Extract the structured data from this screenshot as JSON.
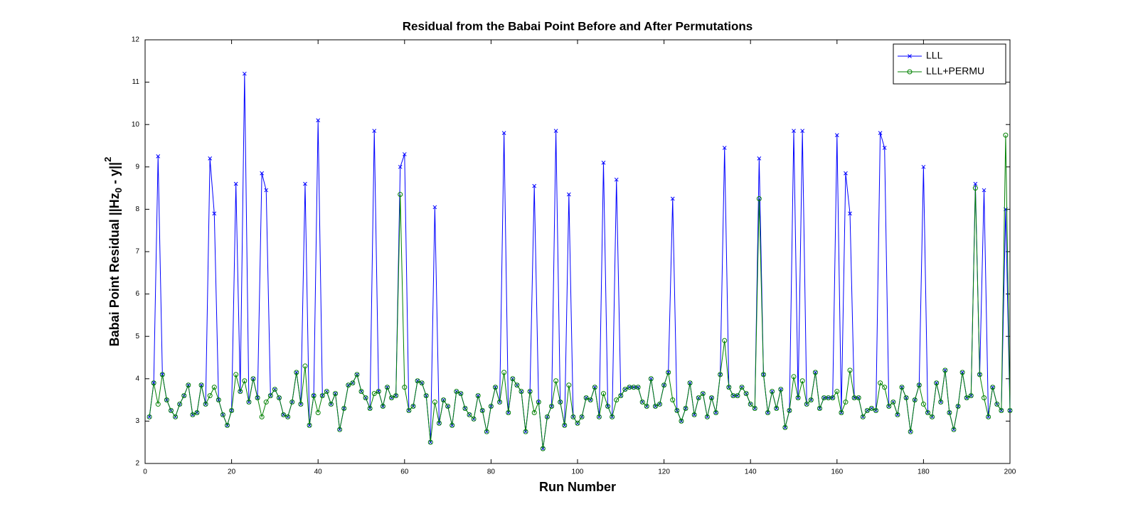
{
  "chart_data": {
    "type": "line",
    "title": "Residual from the Babai Point Before and After Permutations",
    "xlabel": "Run Number",
    "ylabel": [
      "Babai Point Residual ||Hz",
      "0",
      " - y||",
      "2"
    ],
    "xlim": [
      0,
      200
    ],
    "xticks": [
      0,
      20,
      40,
      60,
      80,
      100,
      120,
      140,
      160,
      180,
      200
    ],
    "ylim": [
      2,
      12
    ],
    "yticks": [
      2,
      3,
      4,
      5,
      6,
      7,
      8,
      9,
      10,
      11,
      12
    ],
    "legend": "northeast",
    "x": [
      1,
      2,
      3,
      4,
      5,
      6,
      7,
      8,
      9,
      10,
      11,
      12,
      13,
      14,
      15,
      16,
      17,
      18,
      19,
      20,
      21,
      22,
      23,
      24,
      25,
      26,
      27,
      28,
      29,
      30,
      31,
      32,
      33,
      34,
      35,
      36,
      37,
      38,
      39,
      40,
      41,
      42,
      43,
      44,
      45,
      46,
      47,
      48,
      49,
      50,
      51,
      52,
      53,
      54,
      55,
      56,
      57,
      58,
      59,
      60,
      61,
      62,
      63,
      64,
      65,
      66,
      67,
      68,
      69,
      70,
      71,
      72,
      73,
      74,
      75,
      76,
      77,
      78,
      79,
      80,
      81,
      82,
      83,
      84,
      85,
      86,
      87,
      88,
      89,
      90,
      91,
      92,
      93,
      94,
      95,
      96,
      97,
      98,
      99,
      100,
      101,
      102,
      103,
      104,
      105,
      106,
      107,
      108,
      109,
      110,
      111,
      112,
      113,
      114,
      115,
      116,
      117,
      118,
      119,
      120,
      121,
      122,
      123,
      124,
      125,
      126,
      127,
      128,
      129,
      130,
      131,
      132,
      133,
      134,
      135,
      136,
      137,
      138,
      139,
      140,
      141,
      142,
      143,
      144,
      145,
      146,
      147,
      148,
      149,
      150,
      151,
      152,
      153,
      154,
      155,
      156,
      157,
      158,
      159,
      160,
      161,
      162,
      163,
      164,
      165,
      166,
      167,
      168,
      169,
      170,
      171,
      172,
      173,
      174,
      175,
      176,
      177,
      178,
      179,
      180,
      181,
      182,
      183,
      184,
      185,
      186,
      187,
      188,
      189,
      190,
      191,
      192,
      193,
      194,
      195,
      196,
      197,
      198,
      199,
      200
    ],
    "series": [
      {
        "name": "LLL",
        "color": "#0000ff",
        "marker": "x",
        "values": [
          3.1,
          3.9,
          9.25,
          4.1,
          3.5,
          3.25,
          3.1,
          3.4,
          3.6,
          3.85,
          3.15,
          3.2,
          3.85,
          3.4,
          9.2,
          7.9,
          3.5,
          3.15,
          2.9,
          3.25,
          8.6,
          3.7,
          11.2,
          3.45,
          4.0,
          3.55,
          8.85,
          8.45,
          3.6,
          3.75,
          3.55,
          3.15,
          3.1,
          3.45,
          4.15,
          3.4,
          8.6,
          2.9,
          3.6,
          10.1,
          3.6,
          3.7,
          3.4,
          3.65,
          2.8,
          3.3,
          3.85,
          3.9,
          4.1,
          3.7,
          3.55,
          3.3,
          9.85,
          3.7,
          3.35,
          3.8,
          3.55,
          3.6,
          9.0,
          9.3,
          3.25,
          3.35,
          3.95,
          3.9,
          3.6,
          2.5,
          8.05,
          2.95,
          3.5,
          3.35,
          2.9,
          3.7,
          3.65,
          3.3,
          3.15,
          3.05,
          3.6,
          3.25,
          2.75,
          3.35,
          3.8,
          3.45,
          9.8,
          3.2,
          4.0,
          3.85,
          3.7,
          2.75,
          3.7,
          8.55,
          3.45,
          2.35,
          3.1,
          3.35,
          9.85,
          3.45,
          2.9,
          8.35,
          3.1,
          2.95,
          3.1,
          3.55,
          3.5,
          3.8,
          3.1,
          9.1,
          3.35,
          3.1,
          8.7,
          3.6,
          3.75,
          3.8,
          3.8,
          3.8,
          3.45,
          3.35,
          4.0,
          3.35,
          3.4,
          3.85,
          4.15,
          8.25,
          3.25,
          3.0,
          3.3,
          3.9,
          3.15,
          3.55,
          3.65,
          3.1,
          3.55,
          3.2,
          4.1,
          9.45,
          3.8,
          3.6,
          3.6,
          3.8,
          3.65,
          3.4,
          3.3,
          9.2,
          4.1,
          3.2,
          3.7,
          3.3,
          3.75,
          2.85,
          3.25,
          9.85,
          3.55,
          9.85,
          3.4,
          3.5,
          4.15,
          3.3,
          3.55,
          3.55,
          3.55,
          9.75,
          3.2,
          8.85,
          7.9,
          3.55,
          3.55,
          3.1,
          3.25,
          3.3,
          3.25,
          9.8,
          9.45,
          3.35,
          3.45,
          3.15,
          3.8,
          3.55,
          2.75,
          3.5,
          3.85,
          9.0,
          3.2,
          3.1,
          3.9,
          3.45,
          4.2,
          3.2,
          2.8,
          3.35,
          4.15,
          3.55,
          3.6,
          8.6,
          4.1,
          8.45,
          3.1,
          3.8,
          3.4,
          3.25,
          8.0,
          3.25
        ]
      },
      {
        "name": "LLL+PERMU",
        "color": "#008000",
        "marker": "o",
        "values": [
          3.1,
          3.9,
          3.4,
          4.1,
          3.5,
          3.25,
          3.1,
          3.4,
          3.6,
          3.85,
          3.15,
          3.2,
          3.85,
          3.4,
          3.6,
          3.8,
          3.5,
          3.15,
          2.9,
          3.25,
          4.1,
          3.7,
          3.95,
          3.45,
          4.0,
          3.55,
          3.1,
          3.45,
          3.6,
          3.75,
          3.55,
          3.15,
          3.1,
          3.45,
          4.15,
          3.4,
          4.3,
          2.9,
          3.6,
          3.2,
          3.6,
          3.7,
          3.4,
          3.65,
          2.8,
          3.3,
          3.85,
          3.9,
          4.1,
          3.7,
          3.55,
          3.3,
          3.65,
          3.7,
          3.35,
          3.8,
          3.55,
          3.6,
          8.35,
          3.8,
          3.25,
          3.35,
          3.95,
          3.9,
          3.6,
          2.5,
          3.45,
          2.95,
          3.5,
          3.35,
          2.9,
          3.7,
          3.65,
          3.3,
          3.15,
          3.05,
          3.6,
          3.25,
          2.75,
          3.35,
          3.8,
          3.45,
          4.15,
          3.2,
          4.0,
          3.85,
          3.7,
          2.75,
          3.7,
          3.2,
          3.45,
          2.35,
          3.1,
          3.35,
          3.95,
          3.45,
          2.9,
          3.85,
          3.1,
          2.95,
          3.1,
          3.55,
          3.5,
          3.8,
          3.1,
          3.65,
          3.35,
          3.1,
          3.5,
          3.6,
          3.75,
          3.8,
          3.8,
          3.8,
          3.45,
          3.35,
          4.0,
          3.35,
          3.4,
          3.85,
          4.15,
          3.5,
          3.25,
          3.0,
          3.3,
          3.9,
          3.15,
          3.55,
          3.65,
          3.1,
          3.55,
          3.2,
          4.1,
          4.9,
          3.8,
          3.6,
          3.6,
          3.8,
          3.65,
          3.4,
          3.3,
          8.25,
          4.1,
          3.2,
          3.7,
          3.3,
          3.75,
          2.85,
          3.25,
          4.05,
          3.55,
          3.95,
          3.4,
          3.5,
          4.15,
          3.3,
          3.55,
          3.55,
          3.55,
          3.7,
          3.2,
          3.45,
          4.2,
          3.55,
          3.55,
          3.1,
          3.25,
          3.3,
          3.25,
          3.9,
          3.8,
          3.35,
          3.45,
          3.15,
          3.8,
          3.55,
          2.75,
          3.5,
          3.85,
          3.4,
          3.2,
          3.1,
          3.9,
          3.45,
          4.2,
          3.2,
          2.8,
          3.35,
          4.15,
          3.55,
          3.6,
          8.5,
          4.1,
          3.55,
          3.1,
          3.8,
          3.4,
          3.25,
          9.75,
          3.25
        ]
      }
    ]
  }
}
